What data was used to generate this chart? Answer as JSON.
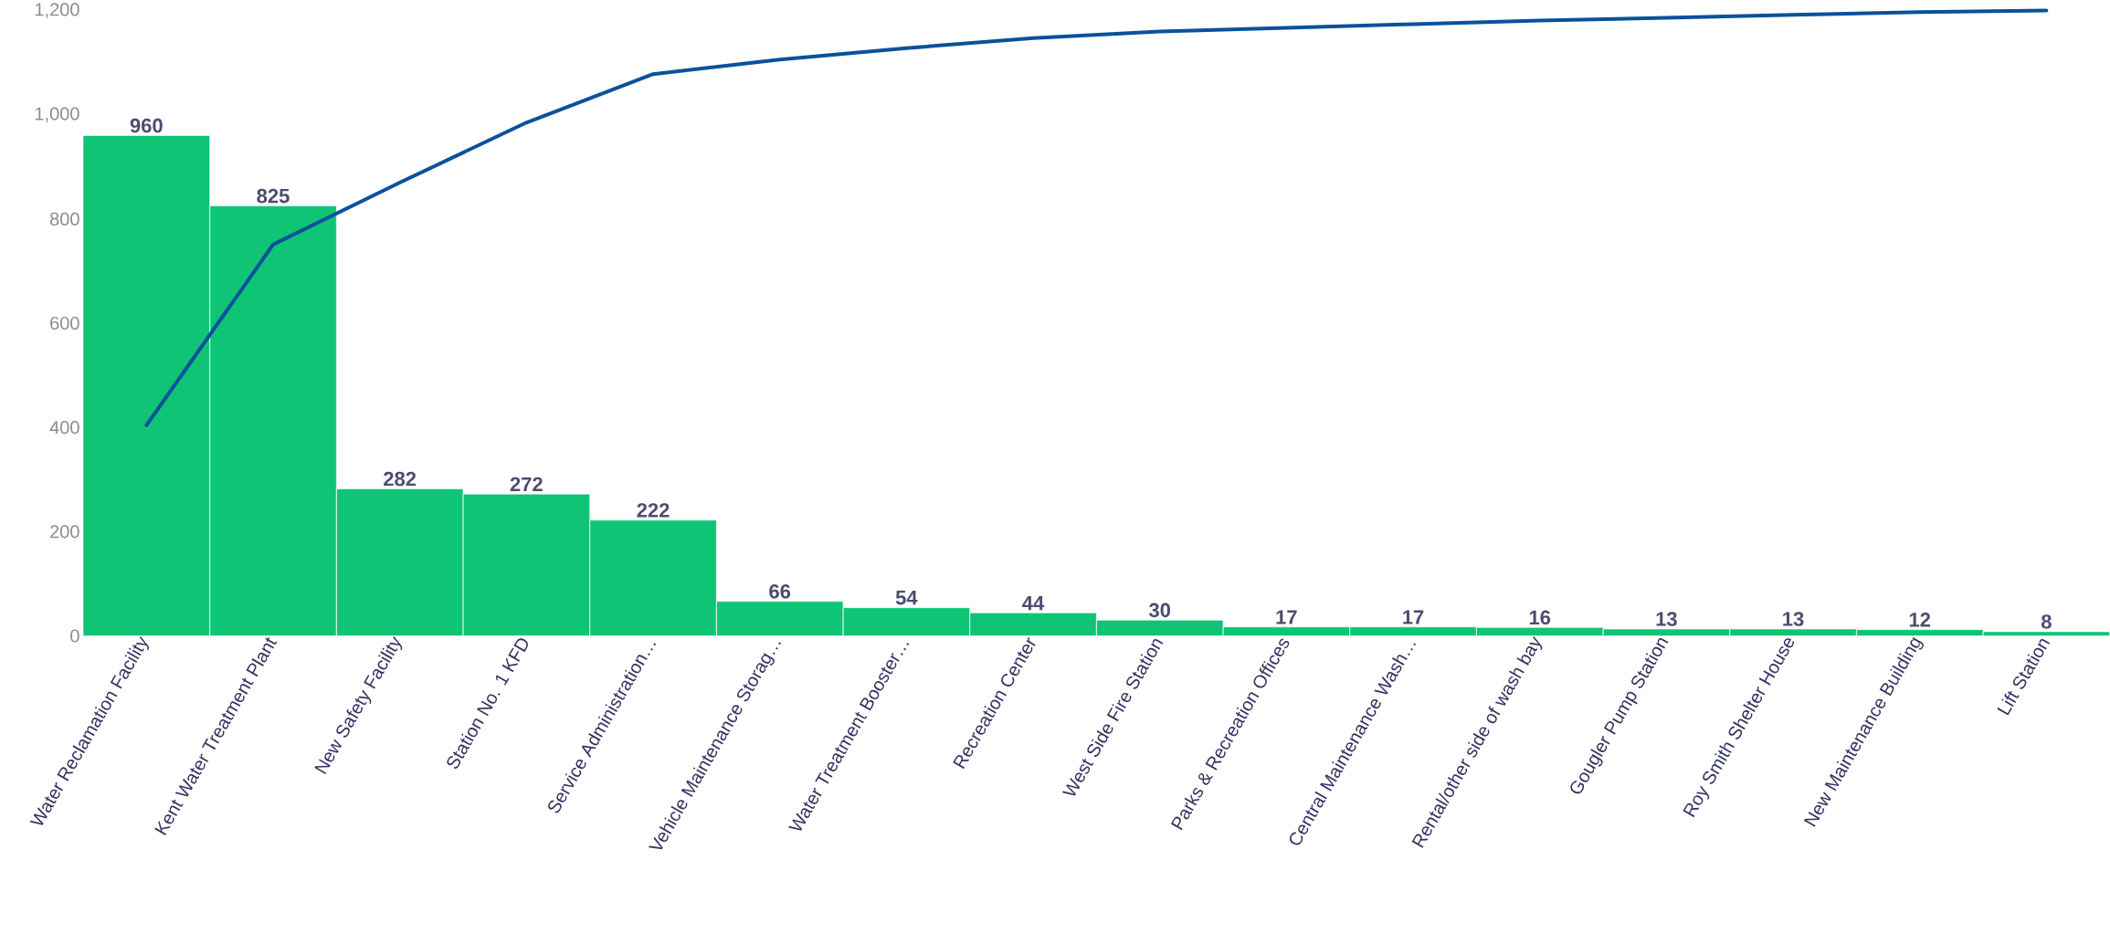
{
  "chart_data": {
    "type": "bar",
    "categories": [
      "Water Reclamation Facility",
      "Kent Water Treatment Plant",
      "New Safety Facility",
      "Station No. 1 KFD",
      "Service Administration…",
      "Vehicle Maintenance Storag…",
      "Water Treatment Booster…",
      "Recreation Center",
      "West Side Fire Station",
      "Parks & Recreation Offices",
      "Central Maintenance Wash…",
      "Rental/other side of wash bay",
      "Gougler Pump Station",
      "Roy Smith Shelter House",
      "New Maintenance Building",
      "Lift Station"
    ],
    "series": [
      {
        "color": "#10c475",
        "values": [
          960,
          825,
          282,
          272,
          222,
          66,
          54,
          44,
          30,
          17,
          17,
          16,
          13,
          13,
          12,
          8
        ],
        "value_labels": [
          "960",
          "825",
          "282",
          "272",
          "222",
          "66",
          "54",
          "44",
          "30",
          "17",
          "17",
          "16",
          "13",
          "13",
          "12",
          "8"
        ]
      },
      {
        "type": "line",
        "color": "#0a519c",
        "values": [
          404,
          751,
          870,
          985,
          1078,
          1106,
          1128,
          1147,
          1160,
          1167,
          1174,
          1181,
          1186,
          1192,
          1197,
          1200
        ]
      }
    ],
    "ylim": [
      0,
      1200
    ],
    "yticks": [
      0,
      200,
      400,
      600,
      800,
      {
        "value": 1000,
        "label": "1,000"
      },
      {
        "value": 1200,
        "label": "1,200"
      }
    ],
    "grid": false,
    "marker": "none",
    "line_style": "solid"
  }
}
